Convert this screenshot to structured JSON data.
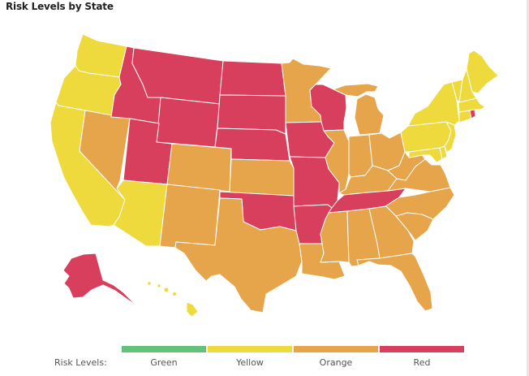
{
  "title": "Risk Levels by State",
  "legend": {
    "label": "Risk Levels:",
    "items": [
      {
        "name": "Green",
        "color": "#63c27a"
      },
      {
        "name": "Yellow",
        "color": "#eeda3c"
      },
      {
        "name": "Orange",
        "color": "#e6a54a"
      },
      {
        "name": "Red",
        "color": "#d83f5c"
      }
    ]
  },
  "states": [
    {
      "code": "WA",
      "level": "Yellow"
    },
    {
      "code": "OR",
      "level": "Yellow"
    },
    {
      "code": "CA",
      "level": "Yellow"
    },
    {
      "code": "NV",
      "level": "Orange"
    },
    {
      "code": "ID",
      "level": "Red"
    },
    {
      "code": "MT",
      "level": "Red"
    },
    {
      "code": "WY",
      "level": "Red"
    },
    {
      "code": "UT",
      "level": "Red"
    },
    {
      "code": "AZ",
      "level": "Yellow"
    },
    {
      "code": "CO",
      "level": "Orange"
    },
    {
      "code": "NM",
      "level": "Orange"
    },
    {
      "code": "ND",
      "level": "Red"
    },
    {
      "code": "SD",
      "level": "Red"
    },
    {
      "code": "NE",
      "level": "Red"
    },
    {
      "code": "KS",
      "level": "Orange"
    },
    {
      "code": "OK",
      "level": "Red"
    },
    {
      "code": "TX",
      "level": "Orange"
    },
    {
      "code": "MN",
      "level": "Orange"
    },
    {
      "code": "IA",
      "level": "Red"
    },
    {
      "code": "MO",
      "level": "Red"
    },
    {
      "code": "AR",
      "level": "Red"
    },
    {
      "code": "LA",
      "level": "Orange"
    },
    {
      "code": "WI",
      "level": "Red"
    },
    {
      "code": "IL",
      "level": "Orange"
    },
    {
      "code": "MI",
      "level": "Orange"
    },
    {
      "code": "IN",
      "level": "Orange"
    },
    {
      "code": "OH",
      "level": "Orange"
    },
    {
      "code": "KY",
      "level": "Orange"
    },
    {
      "code": "TN",
      "level": "Red"
    },
    {
      "code": "MS",
      "level": "Orange"
    },
    {
      "code": "AL",
      "level": "Orange"
    },
    {
      "code": "GA",
      "level": "Orange"
    },
    {
      "code": "FL",
      "level": "Orange"
    },
    {
      "code": "SC",
      "level": "Orange"
    },
    {
      "code": "NC",
      "level": "Orange"
    },
    {
      "code": "VA",
      "level": "Orange"
    },
    {
      "code": "WV",
      "level": "Orange"
    },
    {
      "code": "MD",
      "level": "Yellow"
    },
    {
      "code": "DE",
      "level": "Yellow"
    },
    {
      "code": "PA",
      "level": "Yellow"
    },
    {
      "code": "NJ",
      "level": "Yellow"
    },
    {
      "code": "NY",
      "level": "Yellow"
    },
    {
      "code": "CT",
      "level": "Yellow"
    },
    {
      "code": "RI",
      "level": "Red"
    },
    {
      "code": "MA",
      "level": "Yellow"
    },
    {
      "code": "VT",
      "level": "Yellow"
    },
    {
      "code": "NH",
      "level": "Yellow"
    },
    {
      "code": "ME",
      "level": "Yellow"
    },
    {
      "code": "AK",
      "level": "Red"
    },
    {
      "code": "HI",
      "level": "Yellow"
    }
  ]
}
